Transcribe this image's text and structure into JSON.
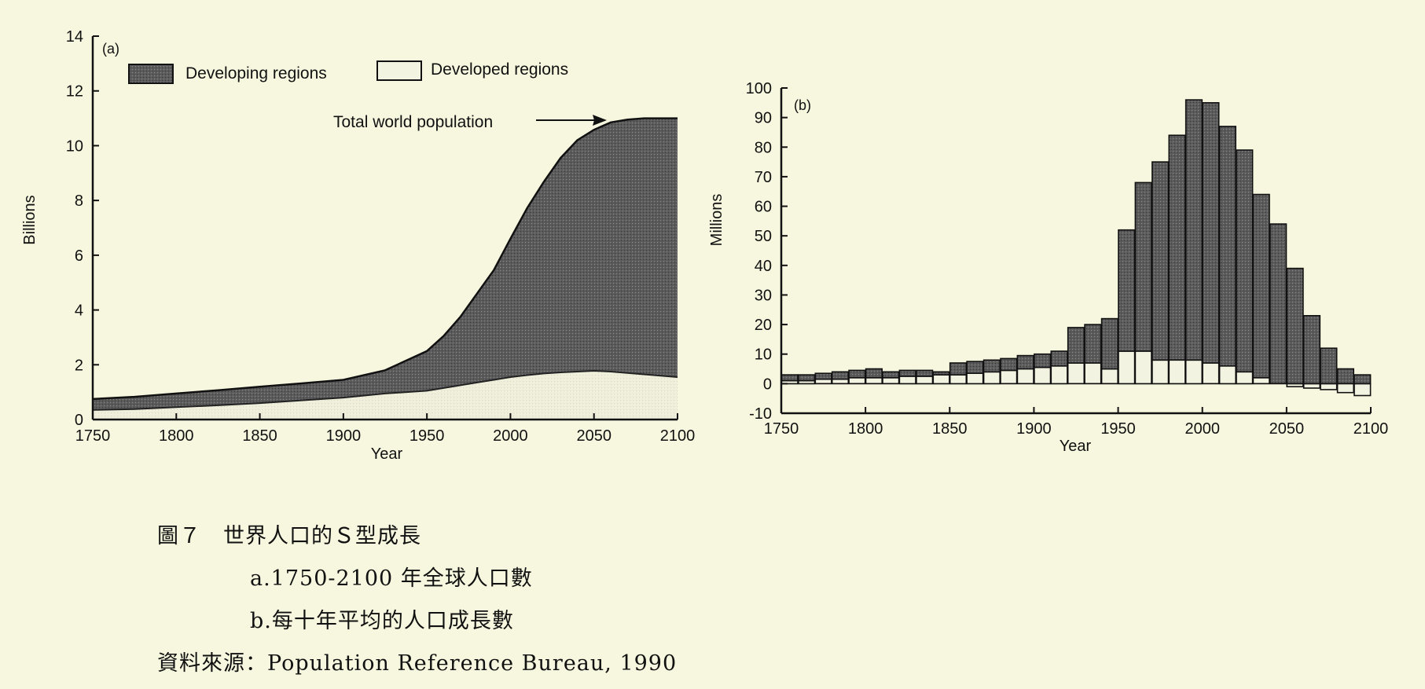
{
  "chart_data": [
    {
      "type": "area",
      "panel_label": "(a)",
      "xlabel": "Year",
      "ylabel": "Billions",
      "xlim": [
        1750,
        2100
      ],
      "ylim": [
        0,
        14
      ],
      "x_ticks": [
        "1750",
        "1800",
        "1850",
        "1900",
        "1950",
        "2000",
        "2050",
        "2100"
      ],
      "y_ticks": [
        "0",
        "2",
        "4",
        "6",
        "8",
        "10",
        "12",
        "14"
      ],
      "legend": {
        "position": "top-left",
        "entries": [
          {
            "label": "Developing regions",
            "fill": "#5a5a5a"
          },
          {
            "label": "Developed regions",
            "fill": "#f3f3e2"
          }
        ]
      },
      "annotation": "Total world population",
      "x": [
        1750,
        1775,
        1800,
        1825,
        1850,
        1875,
        1900,
        1925,
        1950,
        1960,
        1970,
        1980,
        1990,
        2000,
        2010,
        2020,
        2030,
        2040,
        2050,
        2060,
        2070,
        2080,
        2090,
        2100
      ],
      "series": [
        {
          "name": "Developed regions",
          "values": [
            0.35,
            0.38,
            0.45,
            0.52,
            0.6,
            0.7,
            0.8,
            0.95,
            1.05,
            1.15,
            1.25,
            1.35,
            1.45,
            1.55,
            1.62,
            1.68,
            1.72,
            1.75,
            1.78,
            1.75,
            1.7,
            1.65,
            1.6,
            1.55
          ]
        },
        {
          "name": "Developing regions",
          "values": [
            0.4,
            0.45,
            0.5,
            0.55,
            0.6,
            0.62,
            0.65,
            0.85,
            1.45,
            1.9,
            2.5,
            3.25,
            4.0,
            5.05,
            6.1,
            7.0,
            7.83,
            8.45,
            8.8,
            9.1,
            9.25,
            9.35,
            9.4,
            9.45
          ]
        }
      ],
      "total": [
        0.75,
        0.83,
        0.95,
        1.07,
        1.2,
        1.32,
        1.45,
        1.8,
        2.5,
        3.05,
        3.75,
        4.6,
        5.45,
        6.6,
        7.72,
        8.68,
        9.55,
        10.2,
        10.58,
        10.85,
        10.95,
        11.0,
        11.0,
        11.0
      ]
    },
    {
      "type": "bar",
      "panel_label": "(b)",
      "xlabel": "Year",
      "ylabel": "Millions",
      "xlim": [
        1750,
        2100
      ],
      "ylim": [
        -10,
        100
      ],
      "x_ticks": [
        "1750",
        "1800",
        "1850",
        "1900",
        "1950",
        "2000",
        "2050",
        "2100"
      ],
      "y_ticks": [
        "-10",
        "0",
        "10",
        "20",
        "30",
        "40",
        "50",
        "60",
        "70",
        "80",
        "90",
        "100"
      ],
      "categories": [
        1750,
        1760,
        1770,
        1780,
        1790,
        1800,
        1810,
        1820,
        1830,
        1840,
        1850,
        1860,
        1870,
        1880,
        1890,
        1900,
        1910,
        1920,
        1930,
        1940,
        1950,
        1960,
        1970,
        1980,
        1990,
        2000,
        2010,
        2020,
        2030,
        2040,
        2050,
        2060,
        2070,
        2080,
        2090
      ],
      "series": [
        {
          "name": "Developed regions",
          "values": [
            1,
            1,
            1.5,
            1.5,
            2,
            2,
            2,
            2.5,
            2.5,
            3,
            3,
            3.5,
            4,
            4.5,
            5,
            5.5,
            6,
            7,
            7,
            5,
            11,
            11,
            8,
            8,
            8,
            7,
            6,
            4,
            2,
            0,
            -1,
            -1.5,
            -2,
            -3,
            -4
          ]
        },
        {
          "name": "Developing regions",
          "values": [
            2,
            2,
            2,
            2.5,
            2.5,
            3,
            2,
            2,
            2,
            1,
            4,
            4,
            4,
            4,
            4.5,
            4.5,
            5,
            12,
            13,
            17,
            41,
            57,
            67,
            76,
            88,
            88,
            81,
            75,
            62,
            54,
            39,
            23,
            12,
            5,
            3
          ]
        }
      ]
    }
  ],
  "caption": {
    "figure_label": "圖７",
    "title": "世界人口的Ｓ型成長",
    "line_a": "a.1750-2100 年全球人口數",
    "line_b": "b.每十年平均的人口成長數",
    "source": "資料來源：Population Reference Bureau, 1990"
  }
}
